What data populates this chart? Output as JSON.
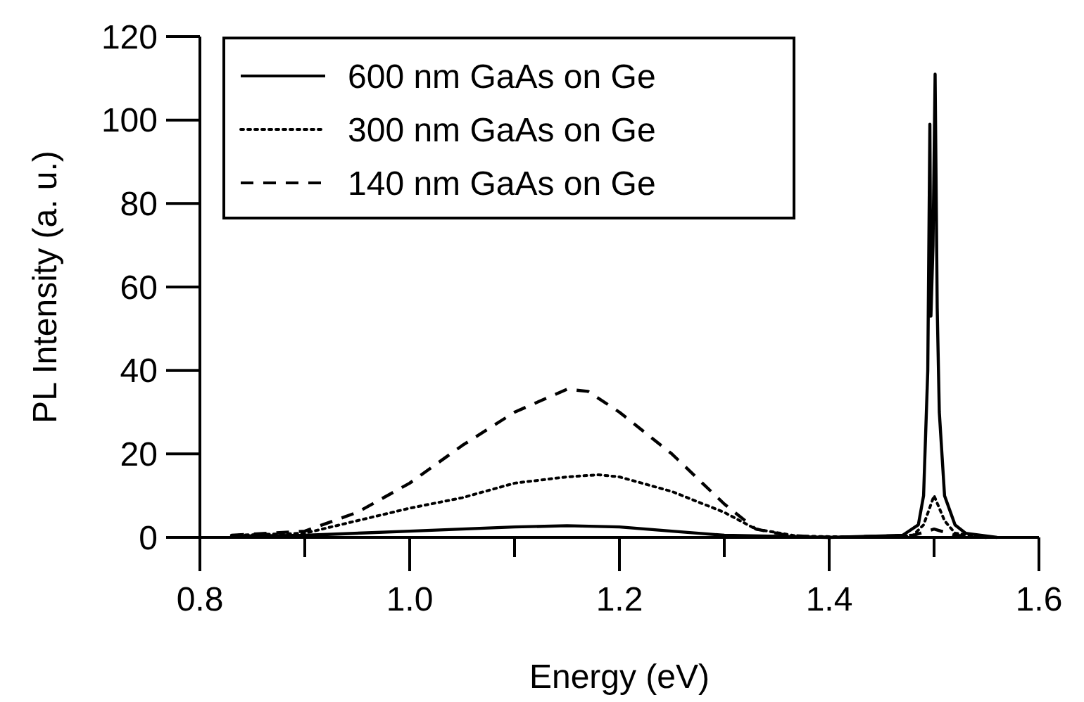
{
  "chart_data": {
    "type": "line",
    "xlabel": "Energy (eV)",
    "ylabel": "PL Intensity (a. u.)",
    "xlim": [
      0.8,
      1.6
    ],
    "xticks": [
      0.8,
      {
        "value": 0.9,
        "label": null
      },
      "1.0",
      {
        "value": 1.1,
        "label": null
      },
      1.2,
      {
        "value": 1.3,
        "label": null
      },
      1.4,
      {
        "value": 1.5,
        "label": null
      },
      1.6
    ],
    "ylim": [
      0,
      120
    ],
    "yticks": [
      0,
      20,
      40,
      60,
      80,
      100,
      120
    ],
    "grid": false,
    "legend": "top left",
    "series": [
      {
        "name": "600 nm GaAs on Ge",
        "color": "#000000",
        "line_style": "solid",
        "x": [
          0.83,
          0.9,
          1.0,
          1.1,
          1.15,
          1.2,
          1.25,
          1.3,
          1.4,
          1.47,
          1.485,
          1.49,
          1.494,
          1.496,
          1.497,
          1.499,
          1.501,
          1.503,
          1.505,
          1.51,
          1.52,
          1.53,
          1.56
        ],
        "values": [
          0.3,
          0.5,
          1.5,
          2.5,
          2.8,
          2.5,
          1.5,
          0.5,
          0,
          0.5,
          3,
          10,
          40,
          99,
          53,
          70,
          111,
          55,
          30,
          10,
          3,
          1,
          0
        ]
      },
      {
        "name": "300 nm GaAs on Ge",
        "color": "#000000",
        "line_style": "dotted",
        "x": [
          0.83,
          0.9,
          0.95,
          1.0,
          1.05,
          1.1,
          1.15,
          1.18,
          1.2,
          1.25,
          1.3,
          1.33,
          1.37,
          1.45,
          1.48,
          1.49,
          1.5,
          1.51,
          1.52,
          1.55
        ],
        "values": [
          0.5,
          1,
          4,
          7,
          9.5,
          13,
          14.5,
          15,
          14.5,
          11,
          6,
          2,
          0.3,
          0,
          0.5,
          3,
          10,
          4,
          1,
          0
        ]
      },
      {
        "name": "140 nm GaAs on Ge",
        "color": "#000000",
        "line_style": "dashed",
        "x": [
          0.83,
          0.9,
          0.95,
          1.0,
          1.05,
          1.1,
          1.15,
          1.17,
          1.2,
          1.25,
          1.3,
          1.33,
          1.36,
          1.4,
          1.48,
          1.5,
          1.52,
          1.55
        ],
        "values": [
          0.5,
          1.5,
          6,
          13,
          22,
          30,
          35.5,
          35,
          30,
          20,
          8,
          2,
          0.5,
          0,
          0.5,
          2,
          0.5,
          0
        ]
      }
    ]
  }
}
